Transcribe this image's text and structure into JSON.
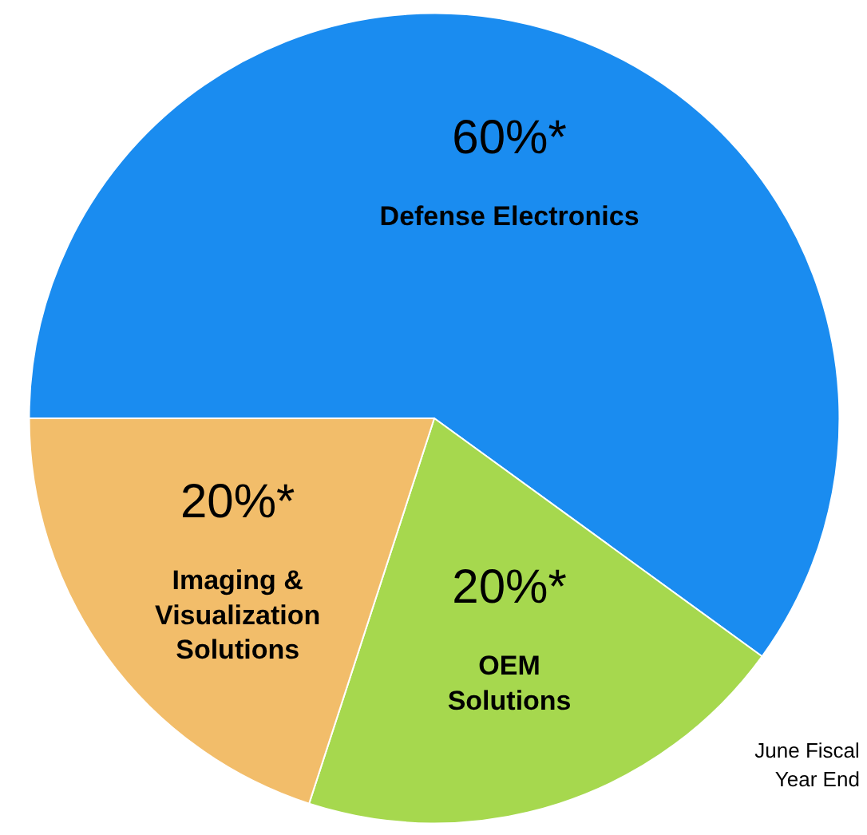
{
  "chart_data": {
    "type": "pie",
    "categories": [
      "Defense Electronics",
      "OEM\nSolutions",
      "Imaging &\nVisualization\nSolutions"
    ],
    "values": [
      60,
      20,
      20
    ],
    "value_labels": [
      "60%*",
      "20%*",
      "20%*"
    ],
    "colors": [
      "#1a8cf0",
      "#a6d84e",
      "#f2bd6a"
    ],
    "annotations": [
      "June Fiscal\nYear End"
    ],
    "legend": false
  }
}
